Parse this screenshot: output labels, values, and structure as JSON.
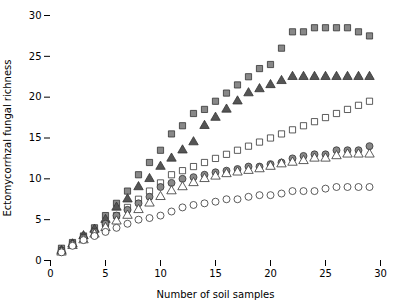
{
  "chart_data": {
    "type": "scatter",
    "xlabel": "Number of soil samples",
    "ylabel": "Ectomycorrhzal fungal richness",
    "xlim": [
      0,
      30
    ],
    "ylim": [
      0,
      30
    ],
    "xticks": [
      0,
      5,
      10,
      15,
      20,
      25,
      30
    ],
    "yticks": [
      0,
      5,
      10,
      15,
      20,
      25,
      30
    ],
    "grid": false,
    "x": [
      1,
      2,
      3,
      4,
      5,
      6,
      7,
      8,
      9,
      10,
      11,
      12,
      13,
      14,
      15,
      16,
      17,
      18,
      19,
      20,
      21,
      22,
      23,
      24,
      25,
      26,
      27,
      28,
      29
    ],
    "series": [
      {
        "marker": "square",
        "color": "#888888",
        "values": [
          1.5,
          2.2,
          3.0,
          4.0,
          5.5,
          7.0,
          8.5,
          10.5,
          12.0,
          13.5,
          15.5,
          16.5,
          18.0,
          18.5,
          19.5,
          20.5,
          21.5,
          22.5,
          23.5,
          24.0,
          26.0,
          28.0,
          28.0,
          28.5,
          28.5,
          28.5,
          28.5,
          28.0,
          27.5
        ]
      },
      {
        "marker": "triangle",
        "color": "#555555",
        "values": [
          1.2,
          2.0,
          3.0,
          3.8,
          5.0,
          6.5,
          7.5,
          9.0,
          10.0,
          11.5,
          12.5,
          13.5,
          14.5,
          16.5,
          17.5,
          18.5,
          19.5,
          20.5,
          21.0,
          21.5,
          22.0,
          22.5,
          22.5,
          22.5,
          22.5,
          22.5,
          22.5,
          22.5,
          22.5
        ]
      },
      {
        "marker": "square",
        "color": "#ffffff",
        "values": [
          1.2,
          2.0,
          2.8,
          3.5,
          4.5,
          5.5,
          6.5,
          7.5,
          8.5,
          9.5,
          10.5,
          11.0,
          11.5,
          12.0,
          12.5,
          13.0,
          13.5,
          14.0,
          14.5,
          15.0,
          15.5,
          16.0,
          16.5,
          17.0,
          17.5,
          18.0,
          18.5,
          19.0,
          19.5
        ]
      },
      {
        "marker": "circle",
        "color": "#888888",
        "values": [
          1.2,
          2.0,
          2.8,
          3.5,
          4.5,
          5.5,
          6.2,
          7.0,
          7.8,
          9.0,
          9.5,
          10.0,
          10.2,
          10.5,
          10.8,
          11.0,
          11.2,
          11.5,
          11.5,
          11.8,
          12.0,
          12.5,
          12.8,
          13.0,
          13.0,
          13.5,
          13.5,
          13.5,
          14.0
        ]
      },
      {
        "marker": "triangle",
        "color": "#ffffff",
        "values": [
          1.0,
          1.8,
          2.5,
          3.2,
          4.0,
          4.8,
          5.5,
          6.2,
          7.0,
          7.8,
          8.5,
          9.0,
          9.5,
          10.0,
          10.3,
          10.6,
          10.8,
          11.0,
          11.2,
          11.5,
          11.8,
          12.0,
          12.2,
          12.5,
          12.5,
          12.8,
          13.0,
          13.0,
          13.0
        ]
      },
      {
        "marker": "circle",
        "color": "#ffffff",
        "values": [
          1.0,
          1.8,
          2.5,
          3.0,
          3.5,
          4.0,
          4.5,
          5.0,
          5.2,
          5.5,
          6.0,
          6.5,
          6.8,
          7.0,
          7.2,
          7.5,
          7.5,
          7.8,
          8.0,
          8.0,
          8.2,
          8.5,
          8.5,
          8.5,
          8.8,
          9.0,
          9.0,
          9.0,
          9.0
        ]
      }
    ]
  }
}
